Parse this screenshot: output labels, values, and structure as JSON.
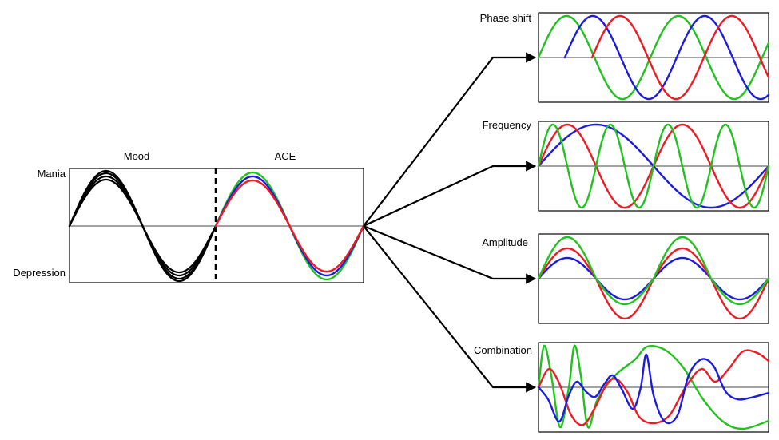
{
  "labels": {
    "mood": "Mood",
    "ace": "ACE",
    "mania": "Mania",
    "depression": "Depression"
  },
  "panels": [
    {
      "key": "phase",
      "title": "Phase shift"
    },
    {
      "key": "frequency",
      "title": "Frequency"
    },
    {
      "key": "amplitude",
      "title": "Amplitude"
    },
    {
      "key": "combination",
      "title": "Combination"
    }
  ],
  "colors": {
    "green": "#22c11f",
    "red": "#ec1c24",
    "blue": "#1c1ce0",
    "black": "#000000",
    "axis": "#444444"
  }
}
